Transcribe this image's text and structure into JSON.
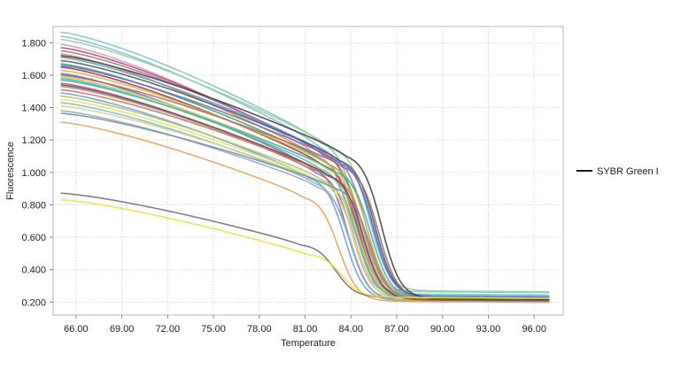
{
  "chart_data": {
    "type": "line",
    "title": "",
    "xlabel": "Temperature",
    "ylabel": "Fluorescence",
    "xlim": [
      64.5,
      97.9
    ],
    "ylim": [
      0.12,
      1.9
    ],
    "x_ticks": [
      "66.00",
      "69.00",
      "72.00",
      "75.00",
      "78.00",
      "81.00",
      "84.00",
      "87.00",
      "90.00",
      "93.00",
      "96.00"
    ],
    "y_ticks": [
      "0.200",
      "0.400",
      "0.600",
      "0.800",
      "1.000",
      "1.200",
      "1.400",
      "1.600",
      "1.800"
    ],
    "grid": true,
    "legend_position": "right",
    "legend": [
      {
        "label": "SYBR Green I",
        "color": "#1a1a1a"
      }
    ],
    "curve_model": {
      "note_x_start": 65.0,
      "note_x_end": 97.0
    },
    "series": [
      {
        "color": "#7ec8bf",
        "y_start": 1.865,
        "y_knee": 1.2,
        "x_melt": 84.4,
        "y_end": 0.265
      },
      {
        "color": "#88b8d8",
        "y_start": 1.84,
        "y_knee": 1.18,
        "x_melt": 84.2,
        "y_end": 0.25
      },
      {
        "color": "#9ad29a",
        "y_start": 1.82,
        "y_knee": 1.16,
        "x_melt": 85.2,
        "y_end": 0.27
      },
      {
        "color": "#d0a0c8",
        "y_start": 1.79,
        "y_knee": 1.13,
        "x_melt": 84.0,
        "y_end": 0.24
      },
      {
        "color": "#c8485a",
        "y_start": 1.77,
        "y_knee": 1.12,
        "x_melt": 84.6,
        "y_end": 0.23
      },
      {
        "color": "#8a7fb8",
        "y_start": 1.75,
        "y_knee": 1.11,
        "x_melt": 85.0,
        "y_end": 0.235
      },
      {
        "color": "#e48a3c",
        "y_start": 1.73,
        "y_knee": 1.1,
        "x_melt": 84.3,
        "y_end": 0.225
      },
      {
        "color": "#5a9ad6",
        "y_start": 1.71,
        "y_knee": 1.1,
        "x_melt": 85.4,
        "y_end": 0.24
      },
      {
        "color": "#5a5a5a",
        "y_start": 1.69,
        "y_knee": 1.09,
        "x_melt": 85.6,
        "y_end": 0.23
      },
      {
        "color": "#3aa860",
        "y_start": 1.67,
        "y_knee": 1.07,
        "x_melt": 84.8,
        "y_end": 0.235
      },
      {
        "color": "#b02a48",
        "y_start": 1.65,
        "y_knee": 1.06,
        "x_melt": 84.5,
        "y_end": 0.22
      },
      {
        "color": "#d4b840",
        "y_start": 1.63,
        "y_knee": 1.05,
        "x_melt": 85.1,
        "y_end": 0.23
      },
      {
        "color": "#6a70a8",
        "y_start": 1.61,
        "y_knee": 1.04,
        "x_melt": 83.8,
        "y_end": 0.215
      },
      {
        "color": "#e6c060",
        "y_start": 1.59,
        "y_knee": 1.03,
        "x_melt": 84.9,
        "y_end": 0.225
      },
      {
        "color": "#40b0b8",
        "y_start": 1.57,
        "y_knee": 1.02,
        "x_melt": 85.3,
        "y_end": 0.23
      },
      {
        "color": "#c06080",
        "y_start": 1.55,
        "y_knee": 1.01,
        "x_melt": 84.1,
        "y_end": 0.22
      },
      {
        "color": "#9a9a9a",
        "y_start": 1.53,
        "y_knee": 1.0,
        "x_melt": 84.7,
        "y_end": 0.215
      },
      {
        "color": "#d87060",
        "y_start": 1.51,
        "y_knee": 0.99,
        "x_melt": 85.0,
        "y_end": 0.225
      },
      {
        "color": "#70a0d0",
        "y_start": 1.49,
        "y_knee": 0.98,
        "x_melt": 83.6,
        "y_end": 0.21
      },
      {
        "color": "#a8c870",
        "y_start": 1.47,
        "y_knee": 0.97,
        "x_melt": 84.4,
        "y_end": 0.22
      },
      {
        "color": "#e0e070",
        "y_start": 1.45,
        "y_knee": 0.96,
        "x_melt": 84.2,
        "y_end": 0.215
      },
      {
        "color": "#8fb0c8",
        "y_start": 1.43,
        "y_knee": 0.95,
        "x_melt": 83.9,
        "y_end": 0.21
      },
      {
        "color": "#c8d890",
        "y_start": 1.41,
        "y_knee": 0.94,
        "x_melt": 84.6,
        "y_end": 0.22
      },
      {
        "color": "#9aaac0",
        "y_start": 1.38,
        "y_knee": 0.93,
        "x_melt": 84.0,
        "y_end": 0.205
      },
      {
        "color": "#7890a8",
        "y_start": 1.365,
        "y_knee": 0.92,
        "x_melt": 85.2,
        "y_end": 0.215
      },
      {
        "color": "#f0a060",
        "y_start": 1.31,
        "y_knee": 0.86,
        "x_melt": 83.2,
        "y_end": 0.205
      },
      {
        "color": "#a07070",
        "y_start": 1.6,
        "y_knee": 1.05,
        "x_melt": 85.8,
        "y_end": 0.22
      },
      {
        "color": "#50c0a0",
        "y_start": 1.58,
        "y_knee": 1.04,
        "x_melt": 84.3,
        "y_end": 0.225
      },
      {
        "color": "#6868c8",
        "y_start": 1.66,
        "y_knee": 1.08,
        "x_melt": 85.5,
        "y_end": 0.23
      },
      {
        "color": "#444444",
        "y_start": 1.72,
        "y_knee": 1.12,
        "x_melt": 86.0,
        "y_end": 0.22
      },
      {
        "color": "#7a5040",
        "y_start": 1.54,
        "y_knee": 1.0,
        "x_melt": 84.8,
        "y_end": 0.215
      },
      {
        "color": "#7a7070",
        "y_start": 0.872,
        "y_knee": 0.56,
        "x_melt": 83.0,
        "y_end": 0.23
      },
      {
        "color": "#f0e040",
        "y_start": 0.832,
        "y_knee": 0.5,
        "x_melt": 83.4,
        "y_end": 0.23
      }
    ]
  }
}
